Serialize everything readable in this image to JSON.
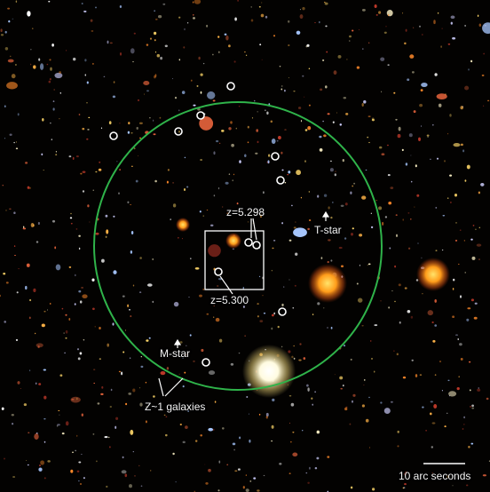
{
  "labels": {
    "z1": "z=5.298",
    "z2": "z=5.300",
    "t_star": "T-star",
    "m_star": "M-star",
    "galaxies": "Z~1 galaxies",
    "scale_bar": "10 arc seconds"
  },
  "colors": {
    "background": "#030201",
    "circle": "#2fb34a",
    "marker": "#ffffff",
    "annotation": "#f4f4f4"
  }
}
